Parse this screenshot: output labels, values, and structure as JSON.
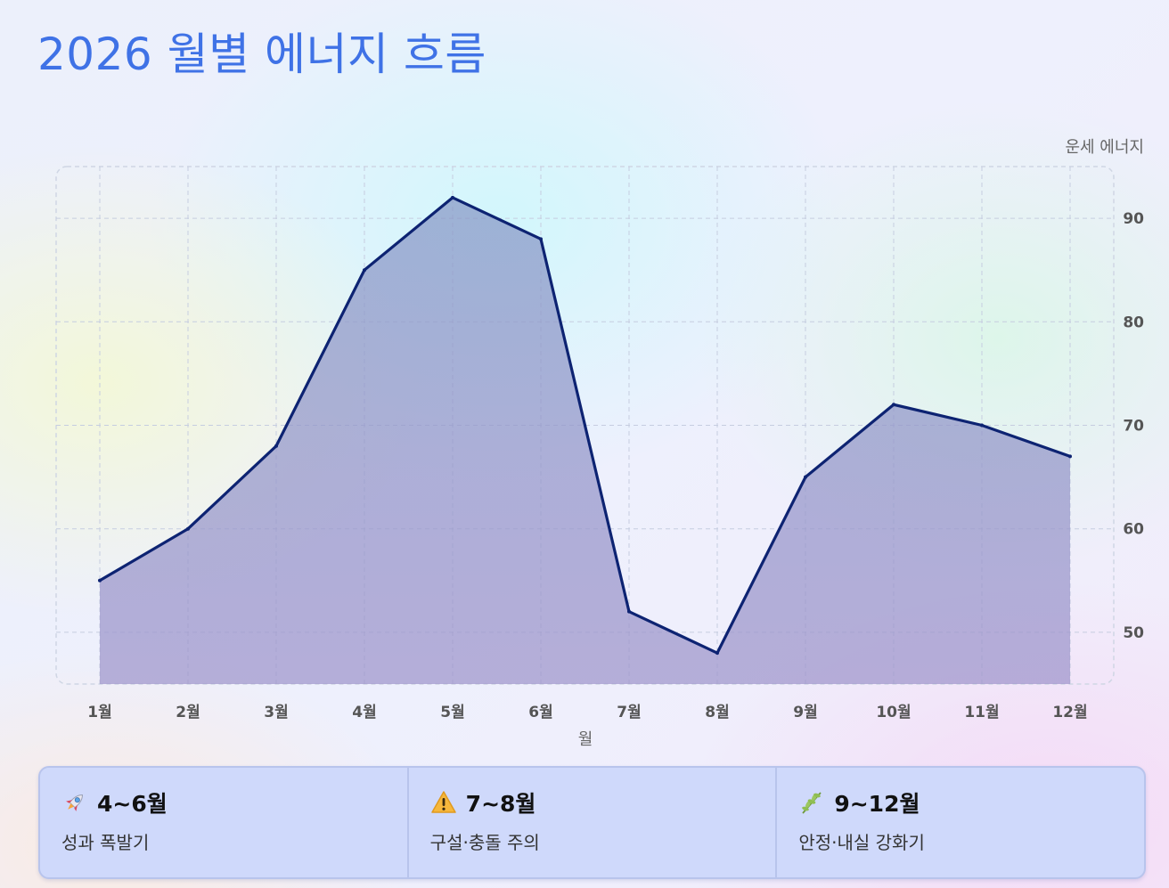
{
  "title": "2026 월별 에너지 흐름",
  "chart_data": {
    "type": "area",
    "categories": [
      "1월",
      "2월",
      "3월",
      "4월",
      "5월",
      "6월",
      "7월",
      "8월",
      "9월",
      "10월",
      "11월",
      "12월"
    ],
    "series": [
      {
        "values": [
          55,
          60,
          68,
          85,
          92,
          88,
          52,
          48,
          65,
          72,
          70,
          67
        ]
      }
    ],
    "xlabel": "월",
    "ylabel": "운세 에너지",
    "ylim": [
      45,
      95
    ],
    "yticks": [
      50,
      60,
      70,
      80,
      90
    ],
    "grid": true,
    "colors": {
      "line": "#0d2372",
      "fill_top": "#8590c8",
      "fill_bottom": "#a8a2cf"
    }
  },
  "cards": [
    {
      "icon": "rocket-icon",
      "range": "4~6월",
      "desc": "성과 폭발기"
    },
    {
      "icon": "warning-icon",
      "range": "7~8월",
      "desc": "구설·충돌 주의"
    },
    {
      "icon": "herb-icon",
      "range": "9~12월",
      "desc": "안정·내실 강화기"
    }
  ]
}
